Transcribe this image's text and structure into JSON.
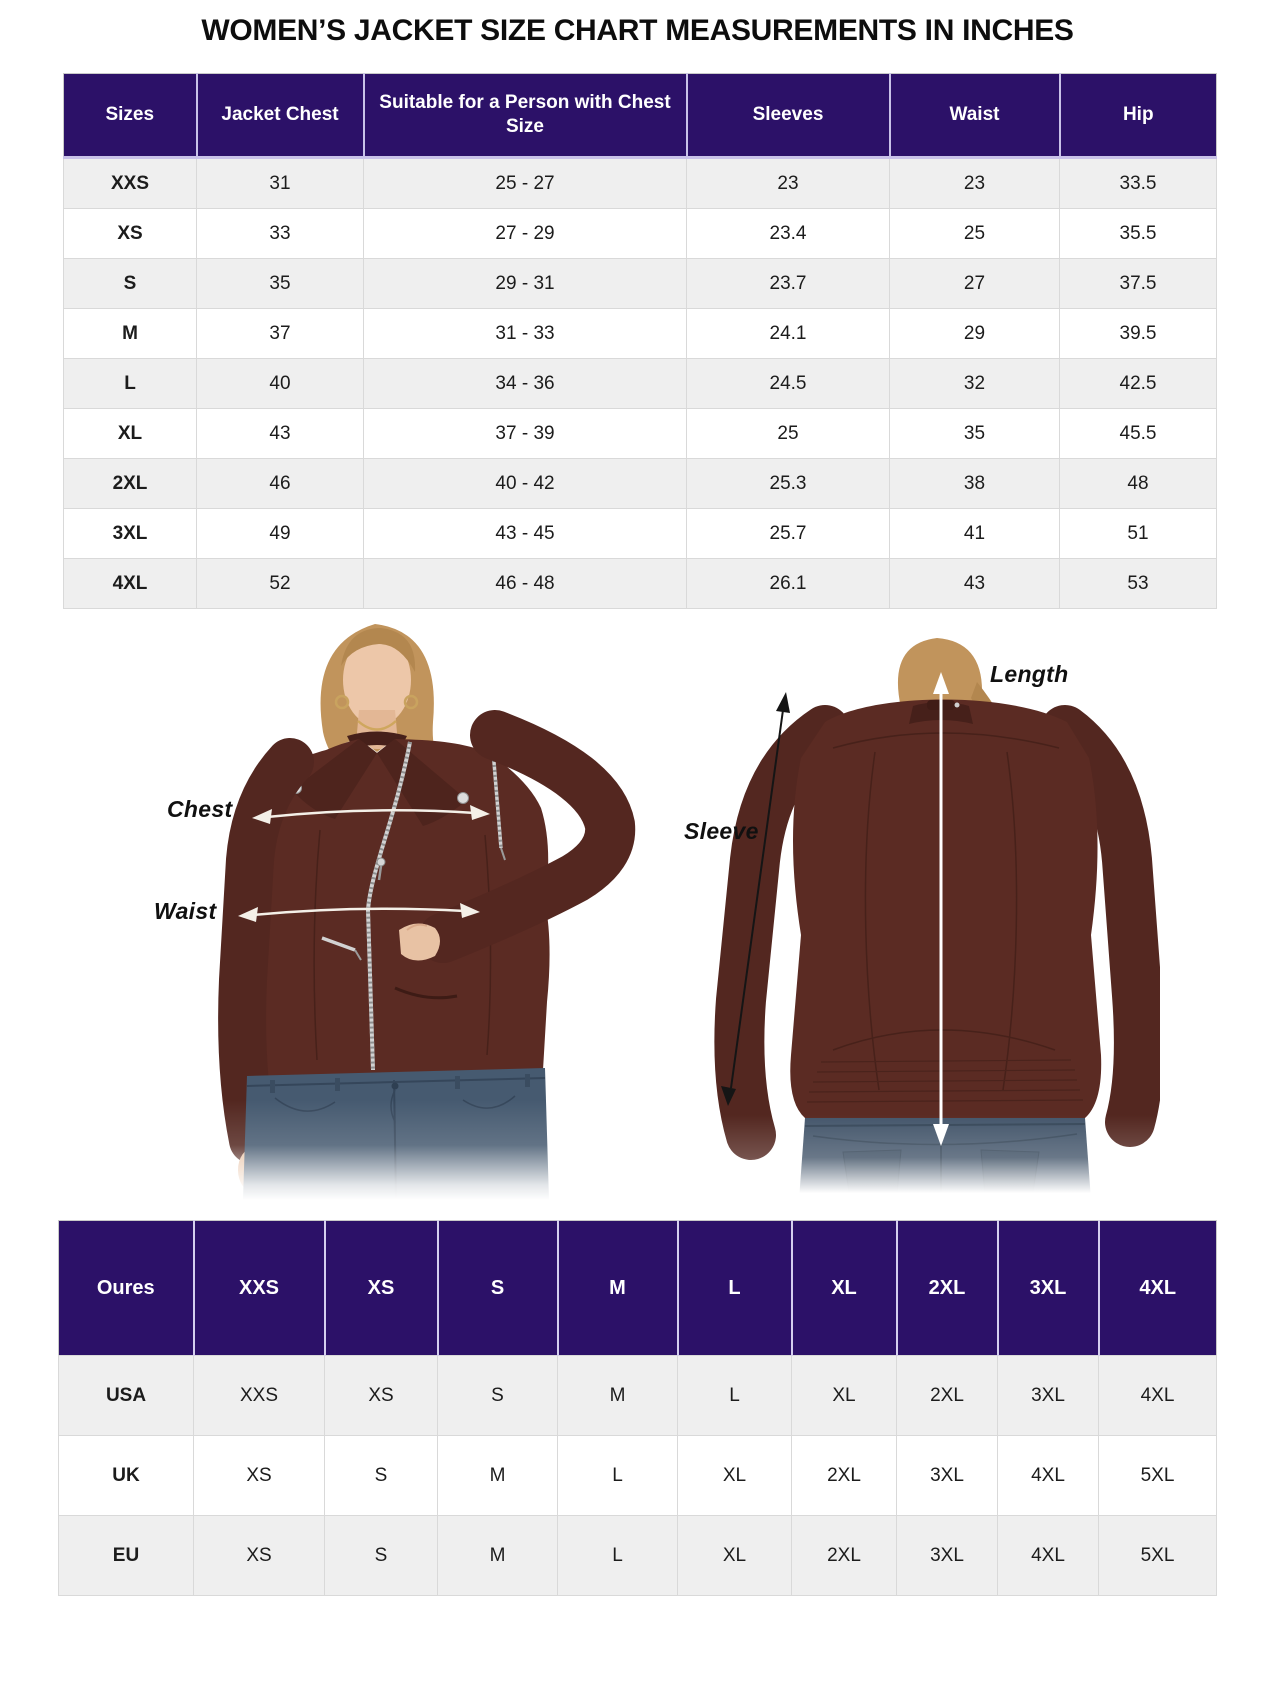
{
  "title": "WOMEN’S JACKET SIZE CHART MEASUREMENTS IN INCHES",
  "size_table": {
    "columns": [
      "Sizes",
      "Jacket Chest",
      "Suitable for a Person with Chest Size",
      "Sleeves",
      "Waist",
      "Hip"
    ],
    "rows": [
      [
        "XXS",
        "31",
        "25 - 27",
        "23",
        "23",
        "33.5"
      ],
      [
        "XS",
        "33",
        "27 - 29",
        "23.4",
        "25",
        "35.5"
      ],
      [
        "S",
        "35",
        "29 - 31",
        "23.7",
        "27",
        "37.5"
      ],
      [
        "M",
        "37",
        "31 - 33",
        "24.1",
        "29",
        "39.5"
      ],
      [
        "L",
        "40",
        "34 - 36",
        "24.5",
        "32",
        "42.5"
      ],
      [
        "XL",
        "43",
        "37 - 39",
        "25",
        "35",
        "45.5"
      ],
      [
        "2XL",
        "46",
        "40 - 42",
        "25.3",
        "38",
        "48"
      ],
      [
        "3XL",
        "49",
        "43 - 45",
        "25.7",
        "41",
        "51"
      ],
      [
        "4XL",
        "52",
        "46 - 48",
        "26.1",
        "43",
        "53"
      ]
    ]
  },
  "measurement_diagram": {
    "front_labels": {
      "chest": "Chest",
      "waist": "Waist"
    },
    "back_labels": {
      "sleeve": "Sleeve",
      "length": "Length"
    }
  },
  "conversion_table": {
    "columns": [
      "Oures",
      "XXS",
      "XS",
      "S",
      "M",
      "L",
      "XL",
      "2XL",
      "3XL",
      "4XL"
    ],
    "rows": [
      [
        "USA",
        "XXS",
        "XS",
        "S",
        "M",
        "L",
        "XL",
        "2XL",
        "3XL",
        "4XL"
      ],
      [
        "UK",
        "XS",
        "S",
        "M",
        "L",
        "XL",
        "2XL",
        "3XL",
        "4XL",
        "5XL"
      ],
      [
        "EU",
        "XS",
        "S",
        "M",
        "L",
        "XL",
        "2XL",
        "3XL",
        "4XL",
        "5XL"
      ]
    ]
  },
  "colors": {
    "table_header_bg": "#2c1168",
    "row_alt_bg": "#efefef",
    "jacket_brown": "#5b2b23",
    "arrow_light": "#f4f0e8",
    "arrow_dark": "#151515"
  }
}
